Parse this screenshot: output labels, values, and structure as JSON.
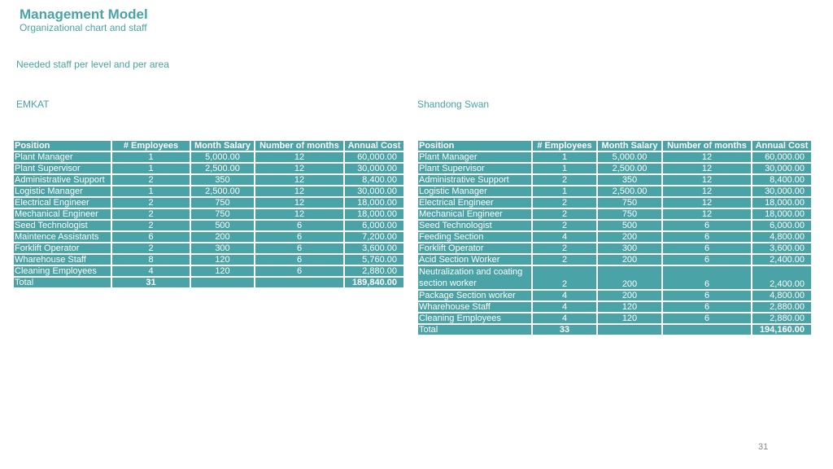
{
  "header": {
    "title": "Management Model",
    "subtitle": "Organizational chart and staff",
    "section": "Needed staff per level and per area"
  },
  "columns": [
    "Position",
    "# Employees",
    "Month Salary",
    "Number of months",
    "Annual Cost"
  ],
  "emkat": {
    "name": "EMKAT",
    "rows": [
      {
        "position": "Plant Manager",
        "employees": "1",
        "salary": "5,000.00",
        "months": "12",
        "cost": "60,000.00"
      },
      {
        "position": "Plant Supervisor",
        "employees": "1",
        "salary": "2,500.00",
        "months": "12",
        "cost": "30,000.00"
      },
      {
        "position": "Administrative Support",
        "employees": "2",
        "salary": "350",
        "months": "12",
        "cost": "8,400.00"
      },
      {
        "position": "Logistic Manager",
        "employees": "1",
        "salary": "2,500.00",
        "months": "12",
        "cost": "30,000.00"
      },
      {
        "position": "Electrical Engineer",
        "employees": "2",
        "salary": "750",
        "months": "12",
        "cost": "18,000.00"
      },
      {
        "position": "Mechanical Engineer",
        "employees": "2",
        "salary": "750",
        "months": "12",
        "cost": "18,000.00"
      },
      {
        "position": "Seed Technologist",
        "employees": "2",
        "salary": "500",
        "months": "6",
        "cost": "6,000.00"
      },
      {
        "position": "Maintence Assistants",
        "employees": "6",
        "salary": "200",
        "months": "6",
        "cost": "7,200.00"
      },
      {
        "position": "Forklift Operator",
        "employees": "2",
        "salary": "300",
        "months": "6",
        "cost": "3,600.00"
      },
      {
        "position": "Wharehouse Staff",
        "employees": "8",
        "salary": "120",
        "months": "6",
        "cost": "5,760.00"
      },
      {
        "position": "Cleaning Employees",
        "employees": "4",
        "salary": "120",
        "months": "6",
        "cost": "2,880.00"
      }
    ],
    "total": {
      "label": "Total",
      "employees": "31",
      "cost": "189,840.00"
    }
  },
  "shandong": {
    "name": "Shandong Swan",
    "rows": [
      {
        "position": "Plant Manager",
        "employees": "1",
        "salary": "5,000.00",
        "months": "12",
        "cost": "60,000.00"
      },
      {
        "position": "Plant Supervisor",
        "employees": "1",
        "salary": "2,500.00",
        "months": "12",
        "cost": "30,000.00"
      },
      {
        "position": "Administrative Support",
        "employees": "2",
        "salary": "350",
        "months": "12",
        "cost": "8,400.00"
      },
      {
        "position": "Logistic Manager",
        "employees": "1",
        "salary": "2,500.00",
        "months": "12",
        "cost": "30,000.00"
      },
      {
        "position": "Electrical Engineer",
        "employees": "2",
        "salary": "750",
        "months": "12",
        "cost": "18,000.00"
      },
      {
        "position": "Mechanical Engineer",
        "employees": "2",
        "salary": "750",
        "months": "12",
        "cost": "18,000.00"
      },
      {
        "position": "Seed Technologist",
        "employees": "2",
        "salary": "500",
        "months": "6",
        "cost": "6,000.00"
      },
      {
        "position": "Feeding Section",
        "employees": "4",
        "salary": "200",
        "months": "6",
        "cost": "4,800.00"
      },
      {
        "position": "Forklift Operator",
        "employees": "2",
        "salary": "300",
        "months": "6",
        "cost": "3,600.00"
      },
      {
        "position": "Acid Section Worker",
        "employees": "2",
        "salary": "200",
        "months": "6",
        "cost": "2,400.00"
      },
      {
        "position": "Neutralization and coating section worker",
        "employees": "2",
        "salary": "200",
        "months": "6",
        "cost": "2,400.00"
      },
      {
        "position": "Package Section worker",
        "employees": "4",
        "salary": "200",
        "months": "6",
        "cost": "4,800.00"
      },
      {
        "position": "Wharehouse Staff",
        "employees": "4",
        "salary": "120",
        "months": "6",
        "cost": "2,880.00"
      },
      {
        "position": "Cleaning Employees",
        "employees": "4",
        "salary": "120",
        "months": "6",
        "cost": "2,880.00"
      }
    ],
    "total": {
      "label": "Total",
      "employees": "33",
      "cost": "194,160.00"
    }
  },
  "page_number": "31"
}
